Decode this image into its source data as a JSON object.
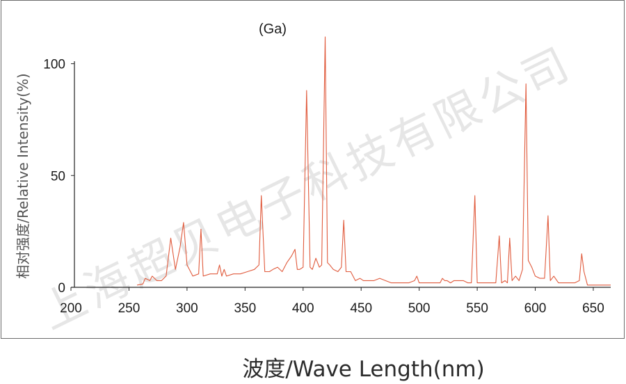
{
  "chart_data": {
    "type": "line",
    "title": "(Ga)",
    "xlabel": "波度/Wave Length(nm)",
    "ylabel": "相对强度/Relative Intensity(%)",
    "xlim": [
      200,
      665
    ],
    "ylim": [
      0,
      112
    ],
    "xticks": [
      200,
      250,
      300,
      350,
      400,
      450,
      500,
      550,
      600,
      650
    ],
    "yticks": [
      0,
      50,
      100
    ],
    "grid": false,
    "line_color": "#e05a3c",
    "series": [
      {
        "x": [
          257,
          262,
          264,
          268,
          270,
          274,
          278,
          282,
          286,
          290,
          294,
          297,
          300,
          305,
          310,
          312,
          314,
          320,
          326,
          328,
          330,
          332,
          334,
          340,
          346,
          352,
          358,
          362,
          364,
          367,
          371,
          374,
          378,
          382,
          386,
          390,
          393,
          395,
          397,
          400,
          403,
          406,
          408,
          411,
          414,
          416,
          419,
          421,
          423,
          426,
          430,
          433,
          435,
          437,
          441,
          445,
          449,
          452,
          456,
          461,
          466,
          471,
          476,
          481,
          486,
          491,
          496,
          498,
          500,
          503,
          508,
          513,
          518,
          520,
          522,
          524,
          527,
          530,
          534,
          538,
          542,
          545,
          548,
          550,
          553,
          558,
          563,
          566,
          569,
          571,
          574,
          576,
          578,
          580,
          583,
          586,
          589,
          592,
          594,
          597,
          600,
          604,
          608,
          611,
          613,
          616,
          620,
          625,
          630,
          634,
          638,
          640,
          642,
          645,
          652,
          660,
          665
        ],
        "y": [
          1,
          1.5,
          4,
          3,
          5,
          3,
          3,
          5,
          22,
          8,
          18,
          29,
          10,
          5,
          6,
          26,
          5,
          6,
          6,
          10,
          5,
          8,
          5,
          6,
          6,
          7,
          8,
          10,
          41,
          7,
          7,
          8,
          9,
          7,
          11,
          14,
          17,
          8,
          8,
          9,
          88,
          9,
          8,
          13,
          9,
          10,
          112,
          11,
          10,
          8,
          7,
          9,
          30,
          7,
          7,
          3,
          4,
          3,
          3,
          3,
          4,
          3,
          2,
          2,
          2,
          2,
          3,
          5,
          2,
          2,
          2,
          2,
          2,
          4,
          3,
          3,
          2,
          3,
          3,
          3,
          2,
          2,
          41,
          2,
          2,
          2,
          2,
          2,
          23,
          2,
          3,
          2,
          22,
          3,
          5,
          3,
          8,
          91,
          12,
          9,
          5,
          4,
          4,
          32,
          3,
          5,
          2,
          2,
          2,
          2,
          3,
          15,
          7,
          1,
          1,
          1,
          1
        ]
      }
    ]
  },
  "watermark": "上海超贝电子科技有限公司"
}
